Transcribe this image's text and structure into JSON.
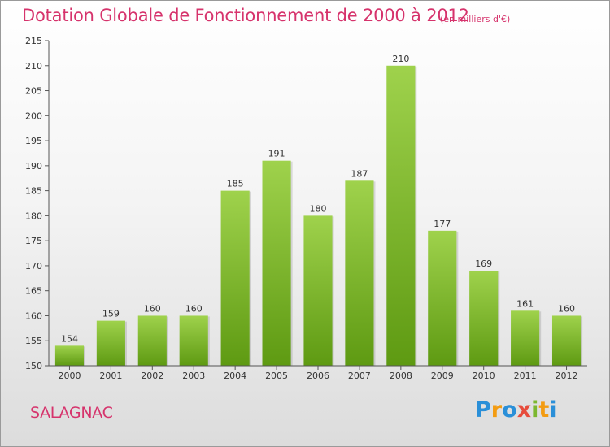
{
  "header": {
    "title": "Dotation Globale de Fonctionnement de 2000 à 2012",
    "unit": "(en milliers d'€)"
  },
  "footer": {
    "commune": "SALAGNAC",
    "logo_letters": [
      "P",
      "r",
      "o",
      "x",
      "i",
      "t",
      "i"
    ],
    "logo_colors": [
      "#2a8fd8",
      "#f39c12",
      "#2a8fd8",
      "#e74c3c",
      "#7cb82f",
      "#f39c12",
      "#2a8fd8"
    ],
    "logo_name": "Proxiti"
  },
  "colors": {
    "bar_top": "#9fd24c",
    "bar_bottom": "#5e9a12",
    "title": "#d6336c"
  },
  "chart_data": {
    "type": "bar",
    "categories": [
      "2000",
      "2001",
      "2002",
      "2003",
      "2004",
      "2005",
      "2006",
      "2007",
      "2008",
      "2009",
      "2010",
      "2011",
      "2012"
    ],
    "values": [
      154,
      159,
      160,
      160,
      185,
      191,
      180,
      187,
      210,
      177,
      169,
      161,
      160
    ],
    "data_labels": [
      "154",
      "159",
      "160",
      "160",
      "185",
      "191",
      "180",
      "187",
      "210",
      "177",
      "169",
      "161",
      "160"
    ],
    "title": "Dotation Globale de Fonctionnement de 2000 à 2012",
    "ylim": [
      150,
      215
    ],
    "yticks": [
      150,
      155,
      160,
      165,
      170,
      175,
      180,
      185,
      190,
      195,
      200,
      205,
      210,
      215
    ],
    "grid": false,
    "legend": "none"
  }
}
